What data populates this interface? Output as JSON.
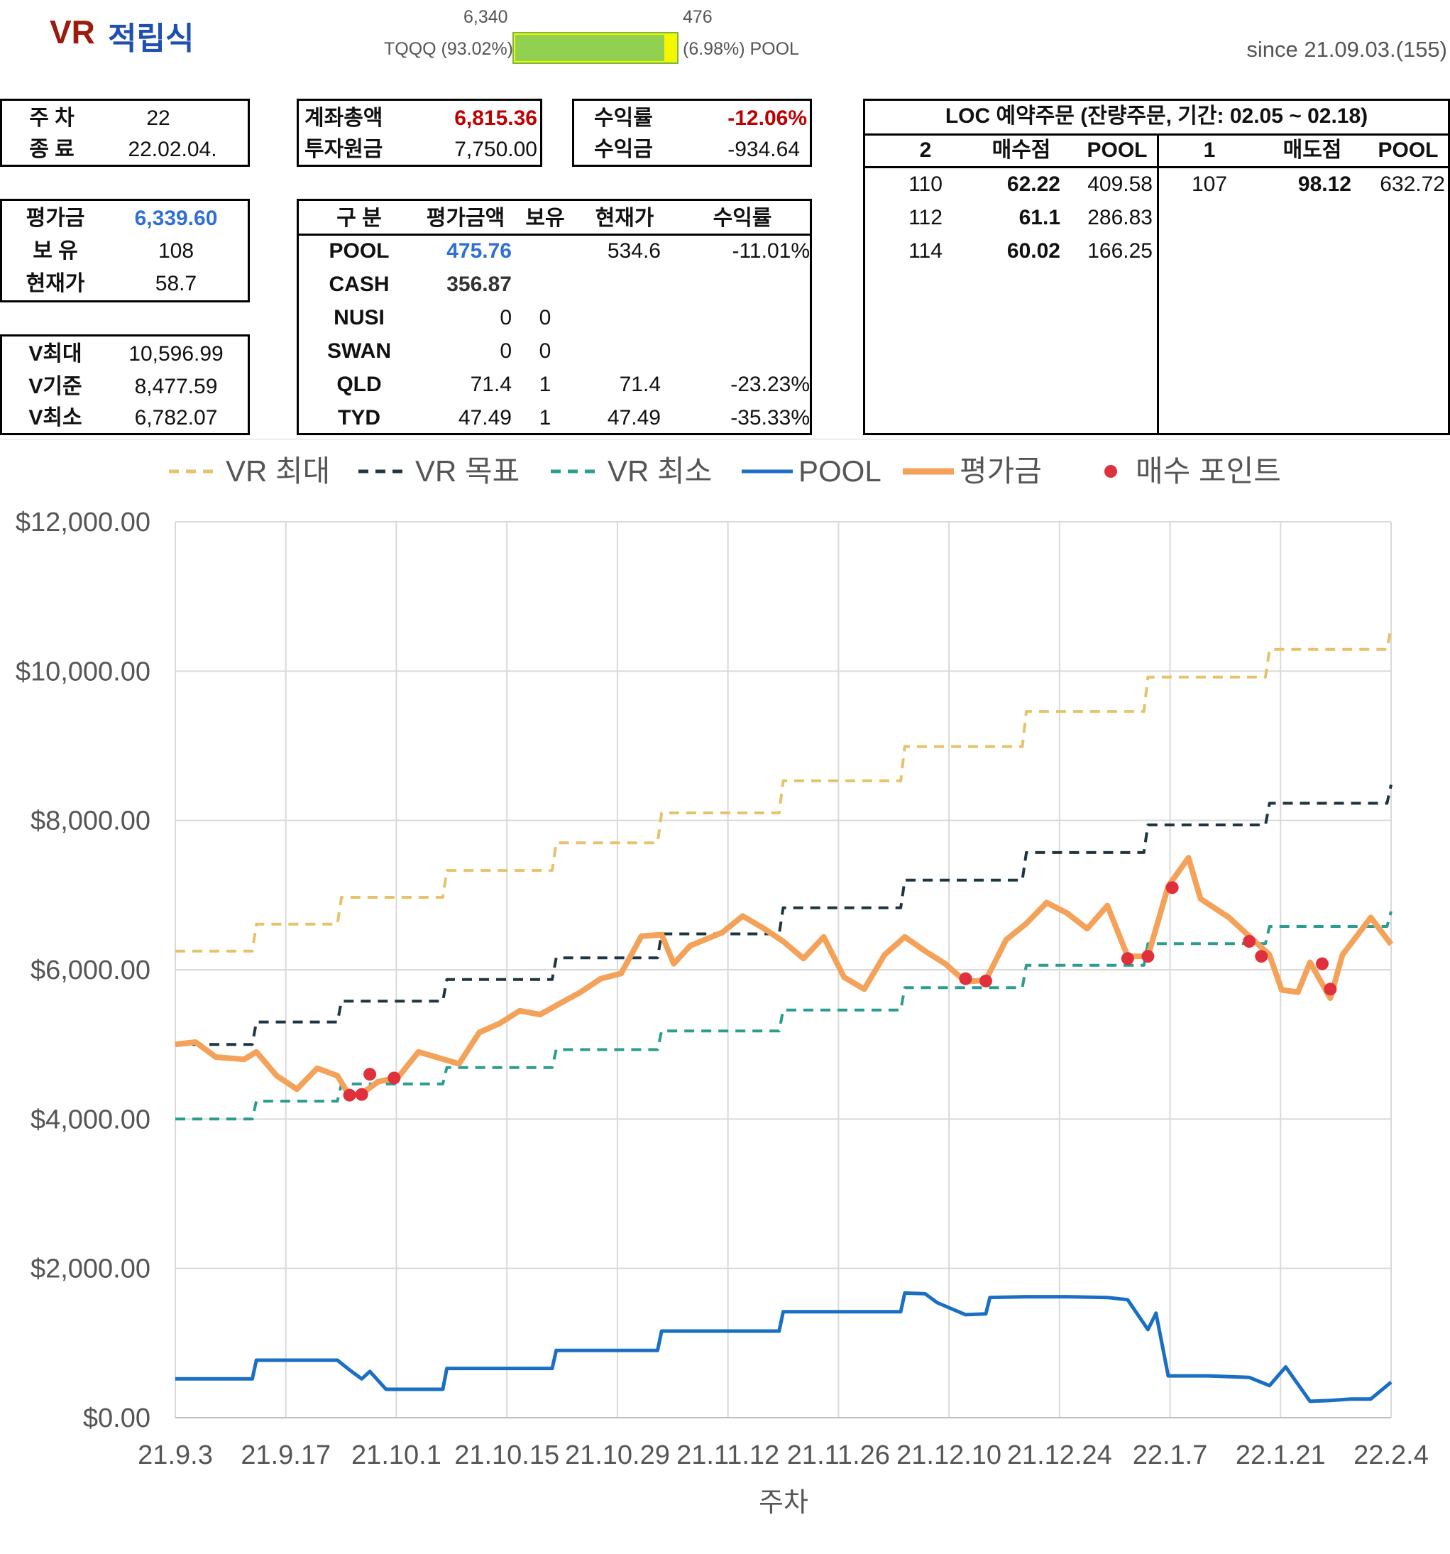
{
  "title": {
    "vr": "VR",
    "korean": "적립식"
  },
  "ratio": {
    "tqqq_value": "6,340",
    "pool_value": "476",
    "tqqq_label": "TQQQ (93.02%)",
    "pool_label": "(6.98%) POOL",
    "tqqq_fraction": 0.9302
  },
  "since": "since 21.09.03.(155)",
  "week_box": {
    "week_label": "주 차",
    "week_value": "22",
    "end_label": "종 료",
    "end_value": "22.02.04."
  },
  "account_box": {
    "total_label": "계좌총액",
    "total_value": "6,815.36",
    "principal_label": "투자원금",
    "principal_value": "7,750.00"
  },
  "return_box": {
    "rate_label": "수익률",
    "rate_value": "-12.06%",
    "profit_label": "수익금",
    "profit_value": "-934.64"
  },
  "eval_box": {
    "eval_label": "평가금",
    "eval_value": "6,339.60",
    "hold_label": "보 유",
    "hold_value": "108",
    "price_label": "현재가",
    "price_value": "58.7"
  },
  "v_box": {
    "vmax_label": "V최대",
    "vmax_value": "10,596.99",
    "vbase_label": "V기준",
    "vbase_value": "8,477.59",
    "vmin_label": "V최소",
    "vmin_value": "6,782.07"
  },
  "holdings": {
    "headers": [
      "구 분",
      "평가금액",
      "보유",
      "현재가",
      "수익률"
    ],
    "rows": [
      {
        "name": "POOL",
        "amount": "475.76",
        "qty": "",
        "price": "534.6",
        "rate": "-11.01%"
      },
      {
        "name": "CASH",
        "amount": "356.87",
        "qty": "",
        "price": "",
        "rate": ""
      },
      {
        "name": "NUSI",
        "amount": "0",
        "qty": "0",
        "price": "",
        "rate": ""
      },
      {
        "name": "SWAN",
        "amount": "0",
        "qty": "0",
        "price": "",
        "rate": ""
      },
      {
        "name": "QLD",
        "amount": "71.4",
        "qty": "1",
        "price": "71.4",
        "rate": "-23.23%"
      },
      {
        "name": "TYD",
        "amount": "47.49",
        "qty": "1",
        "price": "47.49",
        "rate": "-35.33%"
      }
    ]
  },
  "loc": {
    "title": "LOC 예약주문 (잔량주문, 기간: 02.05 ~ 02.18)",
    "buy_headers": [
      "2",
      "매수점",
      "POOL"
    ],
    "sell_headers": [
      "1",
      "매도점",
      "POOL"
    ],
    "buy_rows": [
      {
        "qty": "110",
        "price": "62.22",
        "pool": "409.58"
      },
      {
        "qty": "112",
        "price": "61.1",
        "pool": "286.83"
      },
      {
        "qty": "114",
        "price": "60.02",
        "pool": "166.25"
      }
    ],
    "sell_rows": [
      {
        "qty": "107",
        "price": "98.12",
        "pool": "632.72"
      }
    ]
  },
  "chart_data": {
    "type": "line",
    "xlabel": "주차",
    "ylabel": "",
    "ylim": [
      0,
      12000
    ],
    "yticks": [
      "$0.00",
      "$2,000.00",
      "$4,000.00",
      "$6,000.00",
      "$8,000.00",
      "$10,000.00",
      "$12,000.00"
    ],
    "xticks": [
      "21.9.3",
      "21.9.17",
      "21.10.1",
      "21.10.15",
      "21.10.29",
      "21.11.12",
      "21.11.26",
      "21.12.10",
      "21.12.24",
      "22.1.7",
      "22.1.21",
      "22.2.4"
    ],
    "grid": true,
    "legend_position": "top",
    "series": [
      {
        "name": "VR 최대",
        "color": "#e6c36a",
        "style": "dashed",
        "points": [
          [
            0,
            6250
          ],
          [
            1.9,
            6250
          ],
          [
            2.0,
            6610
          ],
          [
            4.0,
            6610
          ],
          [
            4.1,
            6970
          ],
          [
            6.6,
            6970
          ],
          [
            6.7,
            7330
          ],
          [
            9.3,
            7330
          ],
          [
            9.4,
            7700
          ],
          [
            11.9,
            7700
          ],
          [
            12.0,
            8100
          ],
          [
            14.9,
            8100
          ],
          [
            15.0,
            8530
          ],
          [
            17.9,
            8530
          ],
          [
            18.0,
            8990
          ],
          [
            20.9,
            8990
          ],
          [
            21.0,
            9460
          ],
          [
            23.9,
            9460
          ],
          [
            24.0,
            9920
          ],
          [
            26.9,
            9920
          ],
          [
            27.0,
            10290
          ],
          [
            29.9,
            10290
          ],
          [
            30.0,
            10597
          ]
        ]
      },
      {
        "name": "VR 목표",
        "color": "#1f3540",
        "style": "dashed",
        "points": [
          [
            0,
            5000
          ],
          [
            1.9,
            5000
          ],
          [
            2.0,
            5300
          ],
          [
            4.0,
            5300
          ],
          [
            4.1,
            5580
          ],
          [
            6.6,
            5580
          ],
          [
            6.7,
            5870
          ],
          [
            9.3,
            5870
          ],
          [
            9.4,
            6160
          ],
          [
            11.9,
            6160
          ],
          [
            12.0,
            6480
          ],
          [
            14.9,
            6480
          ],
          [
            15.0,
            6830
          ],
          [
            17.9,
            6830
          ],
          [
            18.0,
            7200
          ],
          [
            20.9,
            7200
          ],
          [
            21.0,
            7570
          ],
          [
            23.9,
            7570
          ],
          [
            24.0,
            7940
          ],
          [
            26.9,
            7940
          ],
          [
            27.0,
            8230
          ],
          [
            29.9,
            8230
          ],
          [
            30.0,
            8478
          ]
        ]
      },
      {
        "name": "VR 최소",
        "color": "#2a9d8f",
        "style": "dashed",
        "points": [
          [
            0,
            4000
          ],
          [
            1.9,
            4000
          ],
          [
            2.0,
            4240
          ],
          [
            4.0,
            4240
          ],
          [
            4.1,
            4470
          ],
          [
            6.6,
            4470
          ],
          [
            6.7,
            4690
          ],
          [
            9.3,
            4690
          ],
          [
            9.4,
            4930
          ],
          [
            11.9,
            4930
          ],
          [
            12.0,
            5180
          ],
          [
            14.9,
            5180
          ],
          [
            15.0,
            5460
          ],
          [
            17.9,
            5460
          ],
          [
            18.0,
            5760
          ],
          [
            20.9,
            5760
          ],
          [
            21.0,
            6060
          ],
          [
            23.9,
            6060
          ],
          [
            24.0,
            6350
          ],
          [
            26.9,
            6350
          ],
          [
            27.0,
            6580
          ],
          [
            29.9,
            6580
          ],
          [
            30.0,
            6782
          ]
        ]
      },
      {
        "name": "POOL",
        "color": "#1a6fc4",
        "style": "solid",
        "points": [
          [
            0,
            520
          ],
          [
            1.9,
            520
          ],
          [
            2.0,
            770
          ],
          [
            4.0,
            770
          ],
          [
            4.3,
            640
          ],
          [
            4.6,
            520
          ],
          [
            4.8,
            620
          ],
          [
            5.2,
            380
          ],
          [
            6.6,
            380
          ],
          [
            6.7,
            660
          ],
          [
            9.3,
            660
          ],
          [
            9.4,
            900
          ],
          [
            11.9,
            900
          ],
          [
            12.0,
            1160
          ],
          [
            14.9,
            1160
          ],
          [
            15.0,
            1420
          ],
          [
            17.9,
            1420
          ],
          [
            18.0,
            1670
          ],
          [
            18.5,
            1660
          ],
          [
            18.8,
            1540
          ],
          [
            19.5,
            1380
          ],
          [
            20.0,
            1390
          ],
          [
            20.1,
            1610
          ],
          [
            21.0,
            1620
          ],
          [
            22.0,
            1620
          ],
          [
            23.0,
            1610
          ],
          [
            23.5,
            1580
          ],
          [
            24.0,
            1180
          ],
          [
            24.2,
            1400
          ],
          [
            24.5,
            560
          ],
          [
            25.5,
            560
          ],
          [
            26.5,
            540
          ],
          [
            27.0,
            430
          ],
          [
            27.4,
            680
          ],
          [
            28.0,
            220
          ],
          [
            28.5,
            230
          ],
          [
            29.0,
            250
          ],
          [
            29.5,
            250
          ],
          [
            30.0,
            476
          ]
        ]
      },
      {
        "name": "평가금",
        "color": "#f4a259",
        "style": "solid",
        "points": [
          [
            0,
            5000
          ],
          [
            0.5,
            5030
          ],
          [
            1.0,
            4830
          ],
          [
            1.7,
            4800
          ],
          [
            2.0,
            4900
          ],
          [
            2.5,
            4580
          ],
          [
            3.0,
            4400
          ],
          [
            3.5,
            4680
          ],
          [
            4.0,
            4580
          ],
          [
            4.3,
            4310
          ],
          [
            4.6,
            4340
          ],
          [
            5.0,
            4500
          ],
          [
            5.5,
            4560
          ],
          [
            6.0,
            4900
          ],
          [
            6.5,
            4820
          ],
          [
            7.0,
            4740
          ],
          [
            7.5,
            5160
          ],
          [
            8.0,
            5280
          ],
          [
            8.5,
            5450
          ],
          [
            9.0,
            5400
          ],
          [
            9.5,
            5550
          ],
          [
            10.0,
            5700
          ],
          [
            10.5,
            5880
          ],
          [
            11.0,
            5950
          ],
          [
            11.5,
            6450
          ],
          [
            12.0,
            6470
          ],
          [
            12.3,
            6080
          ],
          [
            12.7,
            6320
          ],
          [
            13.5,
            6500
          ],
          [
            14.0,
            6720
          ],
          [
            14.5,
            6560
          ],
          [
            15.0,
            6380
          ],
          [
            15.5,
            6150
          ],
          [
            16.0,
            6440
          ],
          [
            16.5,
            5900
          ],
          [
            17.0,
            5740
          ],
          [
            17.5,
            6200
          ],
          [
            18.0,
            6440
          ],
          [
            18.5,
            6250
          ],
          [
            19.0,
            6080
          ],
          [
            19.5,
            5840
          ],
          [
            20.0,
            5860
          ],
          [
            20.5,
            6400
          ],
          [
            21.0,
            6620
          ],
          [
            21.5,
            6900
          ],
          [
            22.0,
            6760
          ],
          [
            22.5,
            6550
          ],
          [
            23.0,
            6860
          ],
          [
            23.5,
            6180
          ],
          [
            24.0,
            6180
          ],
          [
            24.5,
            7120
          ],
          [
            25.0,
            7500
          ],
          [
            25.3,
            6950
          ],
          [
            26.0,
            6700
          ],
          [
            26.5,
            6450
          ],
          [
            27.0,
            6200
          ],
          [
            27.3,
            5730
          ],
          [
            27.7,
            5700
          ],
          [
            28.0,
            6100
          ],
          [
            28.5,
            5620
          ],
          [
            28.8,
            6200
          ],
          [
            29.5,
            6700
          ],
          [
            30.0,
            6340
          ]
        ]
      }
    ],
    "buy_points": [
      [
        4.3,
        4320
      ],
      [
        4.6,
        4330
      ],
      [
        4.8,
        4600
      ],
      [
        5.4,
        4550
      ],
      [
        19.5,
        5880
      ],
      [
        20.0,
        5850
      ],
      [
        23.5,
        6150
      ],
      [
        24.0,
        6180
      ],
      [
        24.6,
        7100
      ],
      [
        26.5,
        6380
      ],
      [
        26.8,
        6180
      ],
      [
        28.3,
        6080
      ],
      [
        28.5,
        5740
      ]
    ],
    "buy_point_name": "매수 포인트",
    "buy_point_color": "#e0303c"
  }
}
